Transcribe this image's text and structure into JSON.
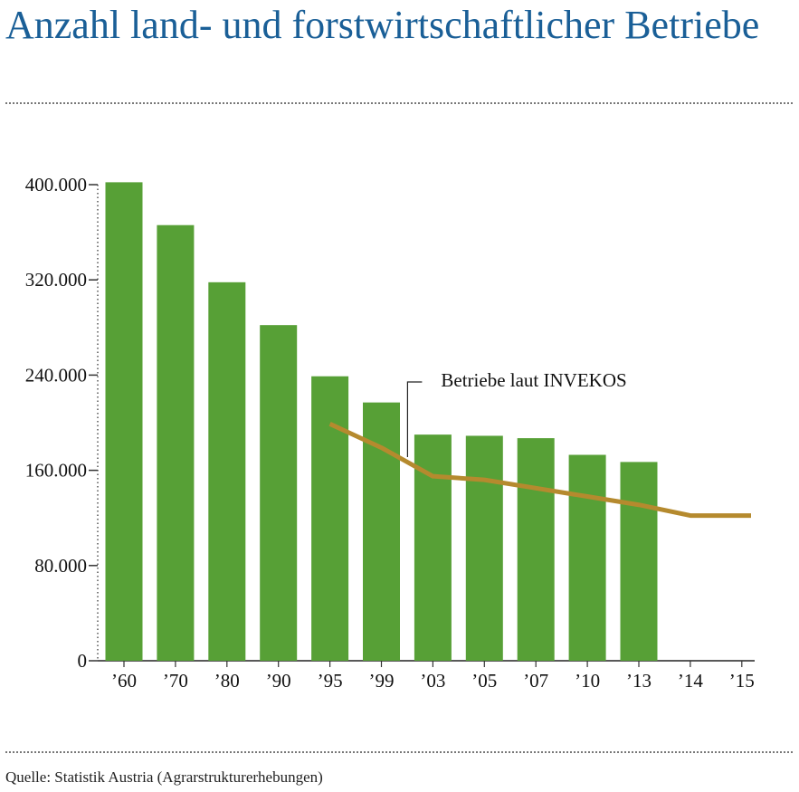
{
  "title": "Anzahl land- und forstwirtschaftlicher Betriebe",
  "source": "Quelle: Statistik Austria (Agrarstrukturerhebungen)",
  "colors": {
    "bar": "#57a036",
    "line": "#b58a2e",
    "title": "#1a5f97"
  },
  "chart_data": {
    "type": "bar",
    "categories": [
      "’60",
      "’70",
      "’80",
      "’90",
      "’95",
      "’99",
      "’03",
      "’05",
      "’07",
      "’10",
      "’13",
      "’14",
      "’15"
    ],
    "ylim": [
      0,
      400000
    ],
    "yticks": [
      0,
      80000,
      160000,
      240000,
      320000,
      400000
    ],
    "ytick_labels": [
      "0",
      "80.000",
      "160.000",
      "240.000",
      "320.000",
      "400.000"
    ],
    "grid": false,
    "series": [
      {
        "type": "bar",
        "values": [
          402000,
          366000,
          318000,
          282000,
          239000,
          217000,
          190000,
          189000,
          187000,
          173000,
          167000,
          null,
          null
        ]
      },
      {
        "type": "line",
        "name": "Betriebe laut INVEKOS",
        "values": [
          null,
          null,
          null,
          null,
          199000,
          179000,
          155000,
          152000,
          145000,
          138000,
          131000,
          122000,
          122000
        ]
      }
    ],
    "annotations": [
      {
        "text": "Betriebe laut INVEKOS",
        "target": "’03"
      }
    ]
  }
}
